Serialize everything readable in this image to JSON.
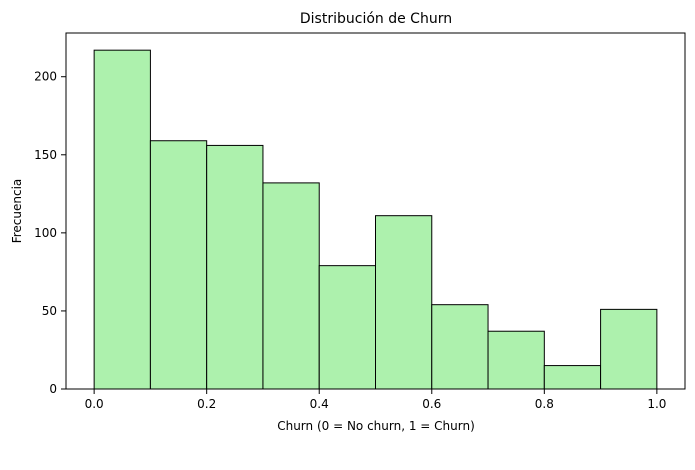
{
  "chart_data": {
    "type": "bar",
    "title": "Distribución de Churn",
    "xlabel": "Churn (0 = No churn, 1 = Churn)",
    "ylabel": "Frecuencia",
    "bin_edges": [
      0.0,
      0.1,
      0.2,
      0.3,
      0.4,
      0.5,
      0.6,
      0.7,
      0.8,
      0.9,
      1.0
    ],
    "values": [
      217,
      159,
      156,
      132,
      79,
      111,
      54,
      37,
      15,
      51
    ],
    "xlim": [
      -0.05,
      1.05
    ],
    "ylim": [
      0,
      228
    ],
    "xticks": [
      0.0,
      0.2,
      0.4,
      0.6,
      0.8,
      1.0
    ],
    "xtick_labels": [
      "0.0",
      "0.2",
      "0.4",
      "0.6",
      "0.8",
      "1.0"
    ],
    "yticks": [
      0,
      50,
      100,
      150,
      200
    ],
    "ytick_labels": [
      "0",
      "50",
      "100",
      "150",
      "200"
    ],
    "grid": false,
    "bar_color": "#adf1ad",
    "edge_color": "#000000"
  }
}
